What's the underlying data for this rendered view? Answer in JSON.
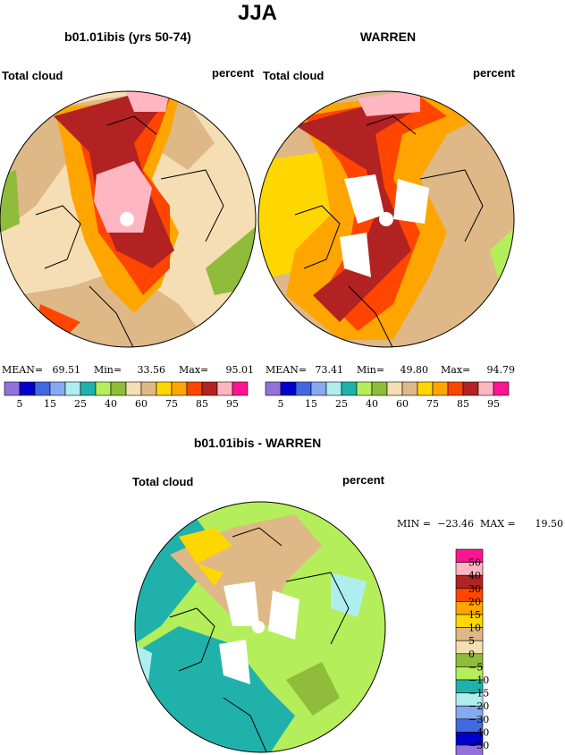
{
  "title": "JJA",
  "panels": [
    {
      "title": "b01.01ibis (yrs 50-74)",
      "variable": "Total cloud",
      "units": "percent",
      "stats": [
        {
          "label": "MEAN=",
          "value": "69.51"
        },
        {
          "label": "Min=",
          "value": "33.56"
        },
        {
          "label": "Max=",
          "value": "95.01"
        }
      ]
    },
    {
      "title": "WARREN",
      "variable": "Total cloud",
      "units": "percent",
      "stats": [
        {
          "label": "MEAN=",
          "value": "73.41"
        },
        {
          "label": "Min=",
          "value": "49.80"
        },
        {
          "label": "Max=",
          "value": "94.79"
        }
      ]
    }
  ],
  "colorbar": {
    "colors": [
      "#9370db",
      "#0000cd",
      "#4169e1",
      "#87a9f0",
      "#afeeee",
      "#20b2aa",
      "#b4ee5a",
      "#8fbc3a",
      "#f5deb3",
      "#deb887",
      "#ffd700",
      "#ffa500",
      "#ff4500",
      "#b22222",
      "#ffb6c1",
      "#ff1493"
    ],
    "labels": [
      "5",
      "15",
      "25",
      "40",
      "60",
      "75",
      "85",
      "95"
    ]
  },
  "difference": {
    "title": "b01.01ibis - WARREN",
    "variable": "Total cloud",
    "units": "percent",
    "stats": [
      {
        "label": "MIN =",
        "value": "−23.46"
      },
      {
        "label": "MAX =",
        "value": "19.50"
      }
    ],
    "colorbar": {
      "colors": [
        "#ff1493",
        "#ffb6c1",
        "#b22222",
        "#ff4500",
        "#ffa500",
        "#ffd700",
        "#deb887",
        "#f5deb3",
        "#8fbc3a",
        "#b4ee5a",
        "#20b2aa",
        "#afeeee",
        "#87a9f0",
        "#4169e1",
        "#0000cd",
        "#9370db"
      ],
      "labels": [
        "50",
        "40",
        "30",
        "20",
        "15",
        "10",
        "5",
        "0",
        "−5",
        "−10",
        "−15",
        "−20",
        "−30",
        "−40",
        "−50"
      ]
    }
  }
}
